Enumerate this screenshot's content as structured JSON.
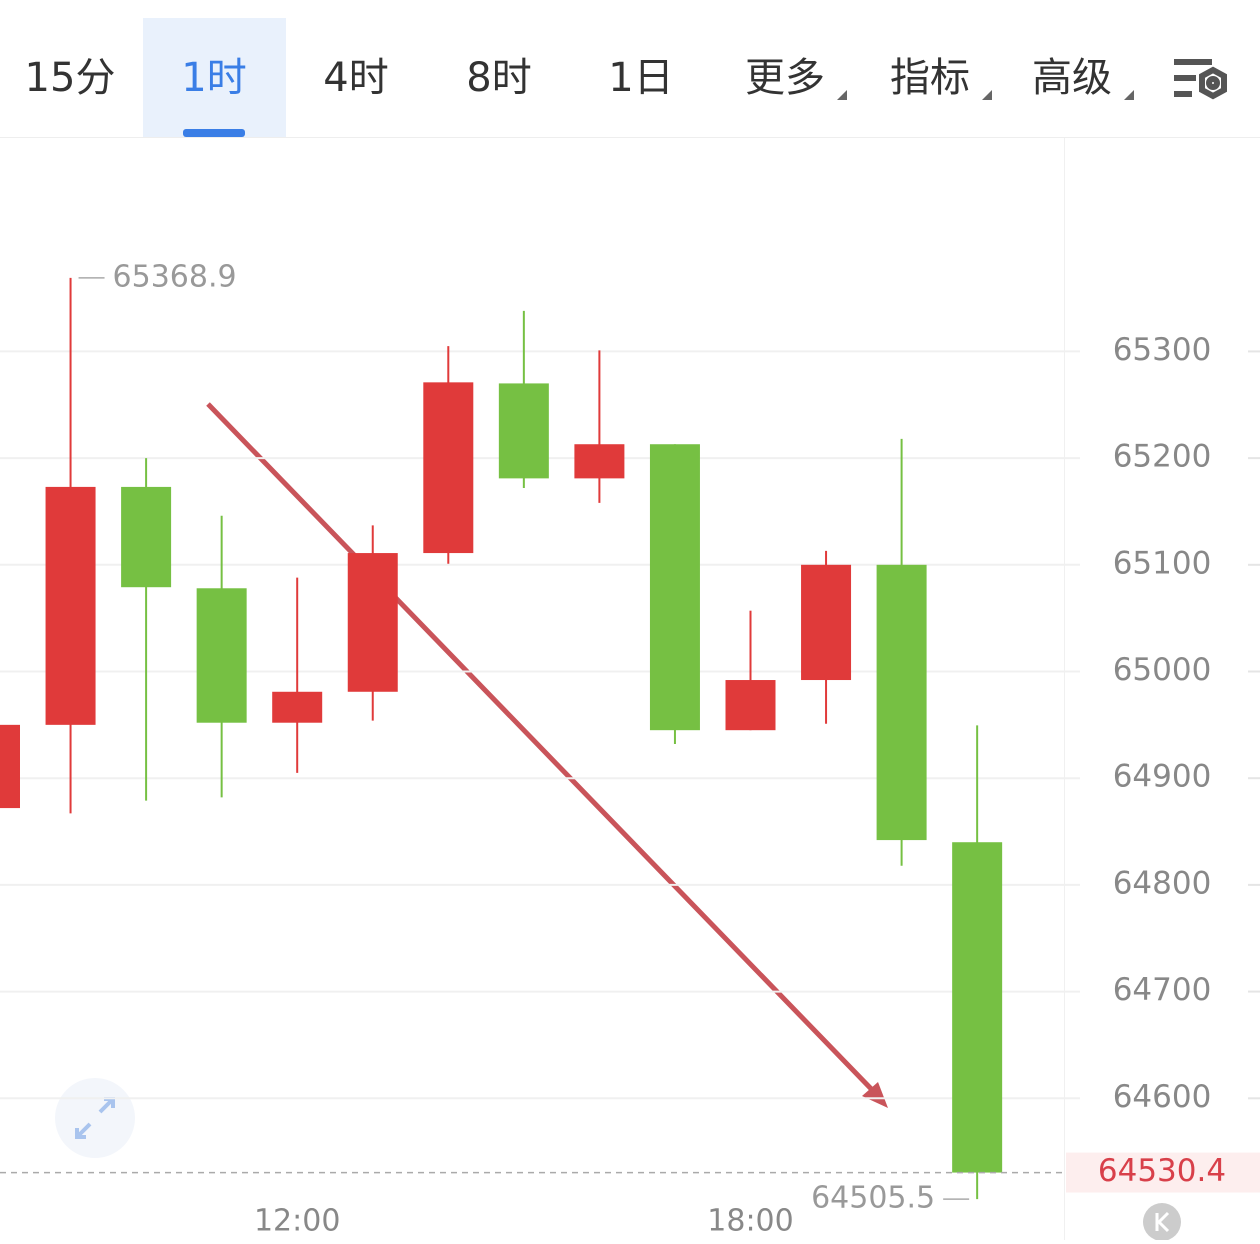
{
  "tabs": [
    "15分",
    "1时",
    "4时",
    "8时",
    "1日",
    "更多",
    "指标",
    "高级"
  ],
  "active_tab": 1,
  "chart_data": {
    "type": "candlestick",
    "categories": [
      null,
      null,
      null,
      null,
      "12:00",
      null,
      null,
      null,
      null,
      null,
      "18:00",
      null,
      null,
      null
    ],
    "series": [
      {
        "open": [
          64872,
          64950,
          65173,
          65078,
          64952,
          64981,
          65111,
          65270,
          65181,
          65213,
          64945,
          64992,
          65100,
          64840
        ],
        "high": [
          64950,
          65368.9,
          65200,
          65146,
          65088,
          65137,
          65305,
          65338,
          65301,
          65213,
          65057,
          65113,
          65218,
          64949.5
        ],
        "low": [
          64872,
          64867,
          64879,
          64882,
          64905,
          64954,
          65101,
          65172,
          65158,
          64932,
          64945,
          64951,
          64818,
          64505.5
        ],
        "close": [
          64950,
          65173,
          65079,
          64952,
          64981,
          65111,
          65271,
          65181,
          65213,
          64945,
          64992,
          65100,
          64842,
          64530.4
        ]
      }
    ],
    "up_color": "#e03a3a",
    "down_color": "#76c043",
    "ylim": [
      64500,
      65500
    ],
    "yticks": [
      64600,
      64700,
      64800,
      64900,
      65000,
      65100,
      65200,
      65300
    ],
    "grid": true
  }
}
